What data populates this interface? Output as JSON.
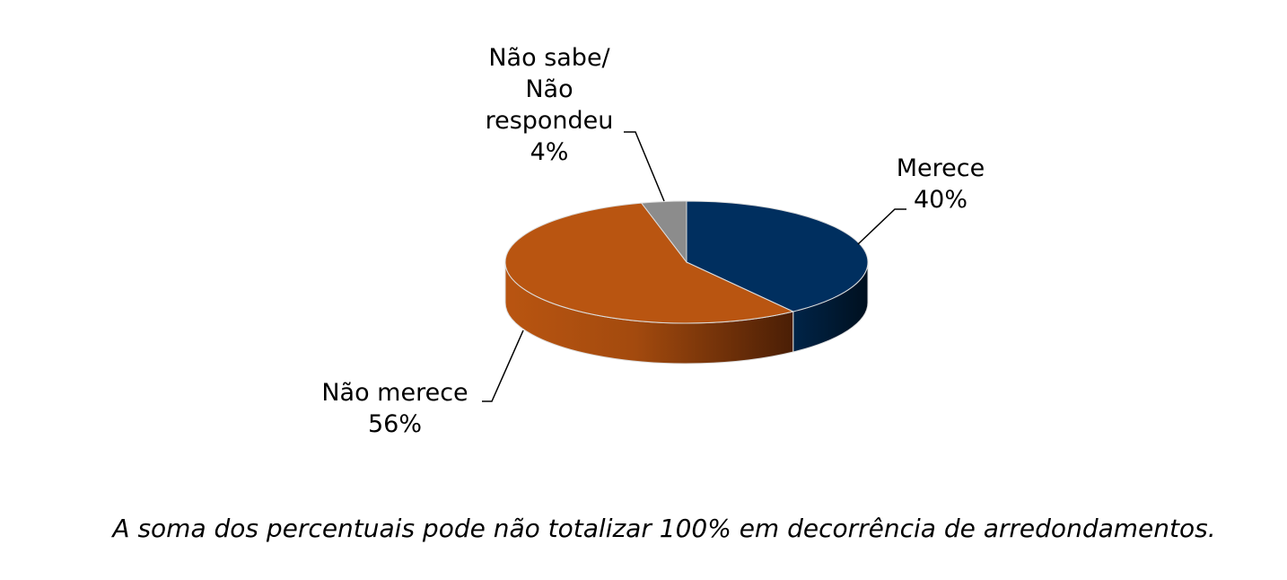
{
  "chart_data": {
    "type": "pie",
    "categories": [
      "Merece",
      "Não merece",
      "Não sabe/ Não respondeu"
    ],
    "values": [
      40,
      56,
      4
    ],
    "value_labels": [
      "40%",
      "56%",
      "4%"
    ],
    "colors": [
      "#002f5f",
      "#b95511",
      "#8c8c8c"
    ],
    "note": "A soma dos percentuais pode não totalizar 100% em decorrência de arredondamentos."
  }
}
